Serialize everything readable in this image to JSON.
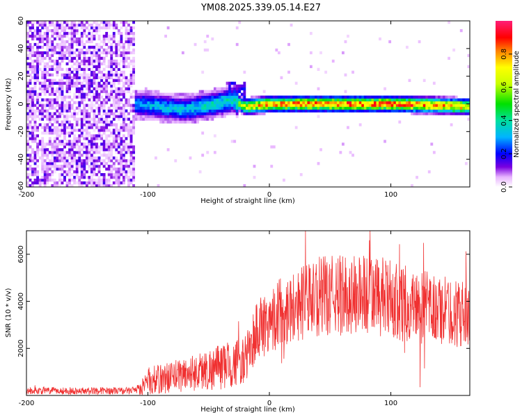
{
  "title": "YM08.2025.339.05.14.E27",
  "chart_data": [
    {
      "type": "heatmap",
      "xlabel": "Height of straight line (km)",
      "ylabel": "Frequency (Hz)",
      "xlim": [
        -200,
        165
      ],
      "ylim": [
        -60,
        60
      ],
      "xticks": [
        -200,
        -100,
        0,
        100
      ],
      "yticks": [
        -60,
        -40,
        -20,
        0,
        20,
        40,
        60
      ],
      "noise_region_x": [
        -200,
        -110
      ],
      "signal_band": [
        {
          "x": -110,
          "f": 0,
          "amp": 0.3
        },
        {
          "x": -90,
          "f": -2,
          "amp": 0.35
        },
        {
          "x": -70,
          "f": -4,
          "amp": 0.35
        },
        {
          "x": -45,
          "f": 0,
          "amp": 0.4
        },
        {
          "x": -30,
          "f": 3,
          "amp": 0.4
        },
        {
          "x": -20,
          "f": -2,
          "amp": 0.7
        },
        {
          "x": 0,
          "f": 0,
          "amp": 0.85
        },
        {
          "x": 50,
          "f": 0,
          "amp": 0.9
        },
        {
          "x": 100,
          "f": 0,
          "amp": 0.9
        },
        {
          "x": 140,
          "f": -1,
          "amp": 0.85
        },
        {
          "x": 165,
          "f": -2,
          "amp": 0.8
        }
      ],
      "colorbar": {
        "label": "Normalized spectral amplitude",
        "range": [
          0,
          1
        ],
        "ticks": [
          "0.0",
          "0.2",
          "0.4",
          "0.6",
          "0.8"
        ],
        "tick_values": [
          0,
          0.2,
          0.4,
          0.6,
          0.8
        ]
      }
    },
    {
      "type": "line",
      "xlabel": "Height of straight line (km)",
      "ylabel": "SNR (10 * v/v)",
      "xlim": [
        -200,
        165
      ],
      "ylim": [
        0,
        7000
      ],
      "xticks": [
        -200,
        -100,
        0,
        100
      ],
      "yticks": [
        2000,
        4000,
        6000
      ],
      "color": "#f03030",
      "envelope": [
        {
          "x": -200,
          "mean": 200,
          "spread": 150
        },
        {
          "x": -110,
          "mean": 200,
          "spread": 150
        },
        {
          "x": -100,
          "mean": 600,
          "spread": 600
        },
        {
          "x": -80,
          "mean": 800,
          "spread": 700
        },
        {
          "x": -60,
          "mean": 1000,
          "spread": 800
        },
        {
          "x": -40,
          "mean": 1200,
          "spread": 1000
        },
        {
          "x": -20,
          "mean": 1500,
          "spread": 1000
        },
        {
          "x": -10,
          "mean": 2800,
          "spread": 1400
        },
        {
          "x": 10,
          "mean": 3600,
          "spread": 1500
        },
        {
          "x": 40,
          "mean": 4200,
          "spread": 1700
        },
        {
          "x": 80,
          "mean": 4300,
          "spread": 1800
        },
        {
          "x": 120,
          "mean": 3800,
          "spread": 1600
        },
        {
          "x": 165,
          "mean": 3400,
          "spread": 1400
        }
      ]
    }
  ]
}
